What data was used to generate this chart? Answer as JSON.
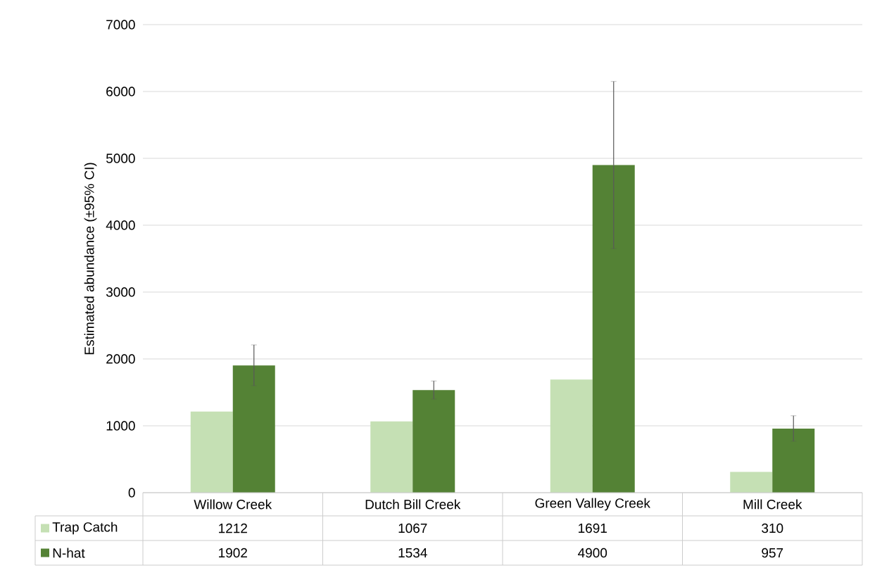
{
  "chart_data": {
    "type": "bar",
    "ylabel": "Estimated abundance (±95% CI)",
    "categories": [
      "Willow Creek",
      "Dutch Bill Creek",
      "Green Valley Creek",
      "Mill Creek"
    ],
    "series": [
      {
        "name": "Trap Catch",
        "color": "#c5e0b4",
        "values": [
          1212,
          1067,
          1691,
          310
        ]
      },
      {
        "name": "N-hat",
        "color": "#548235",
        "values": [
          1902,
          1534,
          4900,
          957
        ],
        "errors": [
          [
            1600,
            2210
          ],
          [
            1400,
            1670
          ],
          [
            3650,
            6150
          ],
          [
            770,
            1150
          ]
        ]
      }
    ],
    "ylim": [
      0,
      7000
    ],
    "yticks": [
      0,
      1000,
      2000,
      3000,
      4000,
      5000,
      6000,
      7000
    ],
    "grid": "y",
    "legend": "bottom",
    "data_labels": true
  }
}
